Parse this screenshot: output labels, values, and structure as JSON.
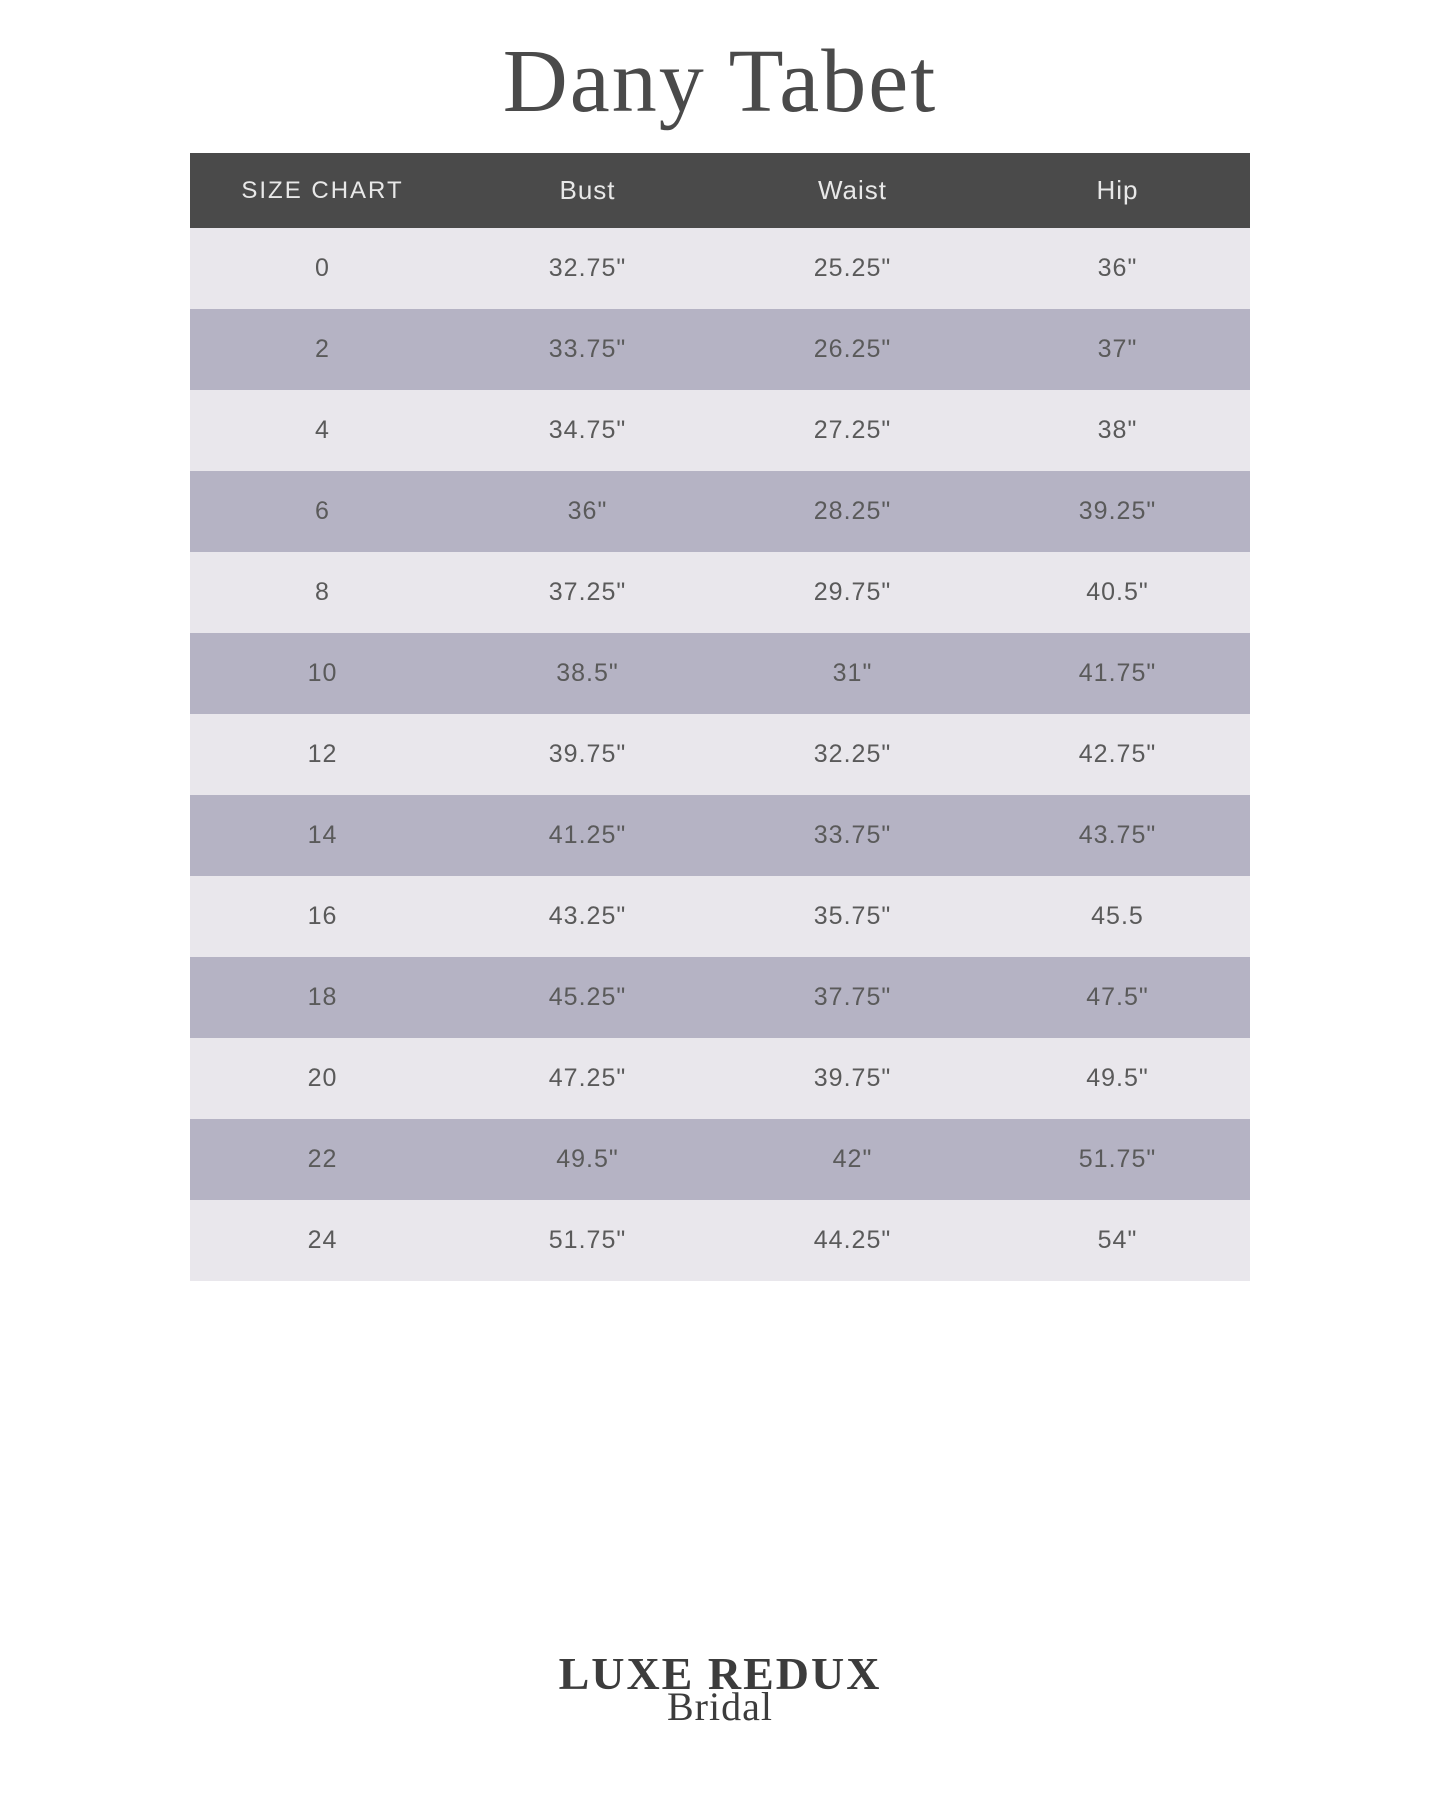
{
  "brand_title": "Dany Tabet",
  "table": {
    "type": "table",
    "header_bg": "#4a4a4a",
    "header_text_color": "#e8e8e8",
    "row_light_bg": "#e9e7ec",
    "row_dark_bg": "#b5b3c4",
    "cell_text_color": "#5a5a5a",
    "header_fontsize": 26,
    "cell_fontsize": 25,
    "columns": [
      "SIZE CHART",
      "Bust",
      "Waist",
      "Hip"
    ],
    "rows": [
      [
        "0",
        "32.75\"",
        "25.25\"",
        "36\""
      ],
      [
        "2",
        "33.75\"",
        "26.25\"",
        "37\""
      ],
      [
        "4",
        "34.75\"",
        "27.25\"",
        "38\""
      ],
      [
        "6",
        "36\"",
        "28.25\"",
        "39.25\""
      ],
      [
        "8",
        "37.25\"",
        "29.75\"",
        "40.5\""
      ],
      [
        "10",
        "38.5\"",
        "31\"",
        "41.75\""
      ],
      [
        "12",
        "39.75\"",
        "32.25\"",
        "42.75\""
      ],
      [
        "14",
        "41.25\"",
        "33.75\"",
        "43.75\""
      ],
      [
        "16",
        "43.25\"",
        "35.75\"",
        "45.5"
      ],
      [
        "18",
        "45.25\"",
        "37.75\"",
        "47.5\""
      ],
      [
        "20",
        "47.25\"",
        "39.75\"",
        "49.5\""
      ],
      [
        "22",
        "49.5\"",
        "42\"",
        "51.75\""
      ],
      [
        "24",
        "51.75\"",
        "44.25\"",
        "54\""
      ]
    ]
  },
  "footer": {
    "main": "LUXE REDUX",
    "script": "Bridal"
  },
  "colors": {
    "page_bg": "#ffffff",
    "title_color": "#4a4a4a",
    "footer_color": "#3c3c3c"
  }
}
